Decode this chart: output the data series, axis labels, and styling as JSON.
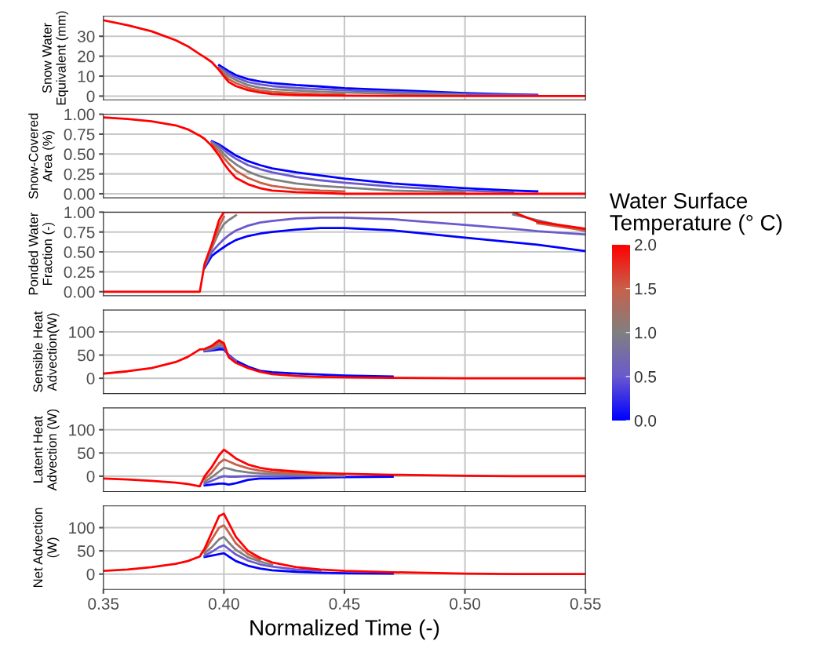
{
  "chart_data": [
    {
      "type": "line",
      "ylabel": "Snow Water\nEquivalent (mm)",
      "clabel": "Water Surface\nTemperature (° C)",
      "clim": [
        0,
        2
      ],
      "cticks": [
        {
          "value": 0,
          "label": "0.0"
        },
        {
          "value": 0.5,
          "label": "0.5"
        },
        {
          "value": 1,
          "label": "1.0"
        },
        {
          "value": 1.5,
          "label": "1.5"
        },
        {
          "value": 2,
          "label": "2.0"
        }
      ],
      "x": [
        0.35,
        0.36,
        0.37,
        0.38,
        0.385,
        0.39,
        0.392,
        0.395,
        0.398,
        0.4,
        0.402,
        0.405,
        0.41,
        0.415,
        0.42,
        0.43,
        0.44,
        0.45,
        0.47,
        0.5,
        0.52,
        0.53,
        0.55
      ],
      "xlim": [
        0.35,
        0.55
      ],
      "ylim": [
        -1.9,
        40
      ],
      "yticks": [
        0,
        10,
        20,
        30
      ],
      "grid": true,
      "tick_labels": "y",
      "series": [
        {
          "color": "#0000ff",
          "values": [
            null,
            null,
            null,
            null,
            null,
            null,
            null,
            null,
            15.5,
            14,
            12.5,
            10.5,
            8.5,
            7.3,
            6.5,
            5.5,
            4.8,
            4,
            3,
            1.5,
            0.8,
            0.6,
            null
          ]
        },
        {
          "color": "#6a5acd",
          "values": [
            null,
            null,
            null,
            null,
            null,
            null,
            null,
            null,
            14.5,
            13,
            11.3,
            9.3,
            7,
            5.8,
            5,
            4.1,
            3.5,
            2.9,
            2.1,
            1,
            0.5,
            0.3,
            null
          ]
        },
        {
          "color": "#808080",
          "values": [
            null,
            null,
            null,
            null,
            null,
            null,
            null,
            null,
            14,
            12,
            10,
            8,
            5.5,
            4.2,
            3.5,
            2.8,
            2.2,
            1.8,
            1.2,
            0.6,
            null,
            null,
            null
          ]
        },
        {
          "color": "#c8604a",
          "values": [
            null,
            null,
            null,
            null,
            null,
            null,
            null,
            null,
            13.5,
            11,
            8.5,
            6.5,
            4.2,
            2.8,
            2.1,
            1.5,
            1,
            0.8,
            null,
            null,
            null,
            null,
            null
          ]
        },
        {
          "color": "#ff0000",
          "values": [
            38,
            35.5,
            32.5,
            28,
            25,
            21,
            19.5,
            17,
            13,
            10,
            7,
            5,
            3,
            1.8,
            1,
            0.5,
            0.3,
            0.2,
            0.1,
            0,
            0,
            0,
            0
          ]
        }
      ]
    },
    {
      "type": "line",
      "ylabel": "Snow-Covered\nArea (%)",
      "x": [
        0.35,
        0.36,
        0.37,
        0.38,
        0.385,
        0.39,
        0.392,
        0.395,
        0.398,
        0.4,
        0.402,
        0.405,
        0.41,
        0.415,
        0.42,
        0.43,
        0.44,
        0.45,
        0.47,
        0.5,
        0.52,
        0.53,
        0.55
      ],
      "xlim": [
        0.35,
        0.55
      ],
      "ylim": [
        -0.05,
        1.0
      ],
      "yticks": [
        {
          "value": 0,
          "label": "0.00"
        },
        {
          "value": 0.25,
          "label": "0.25"
        },
        {
          "value": 0.5,
          "label": "0.50"
        },
        {
          "value": 0.75,
          "label": "0.75"
        },
        {
          "value": 1,
          "label": "1.00"
        }
      ],
      "grid": true,
      "tick_labels": "y",
      "series": [
        {
          "color": "#0000ff",
          "values": [
            null,
            null,
            null,
            null,
            null,
            null,
            null,
            0.66,
            0.62,
            0.58,
            0.54,
            0.48,
            0.41,
            0.36,
            0.32,
            0.27,
            0.23,
            0.19,
            0.13,
            0.07,
            0.04,
            0.03,
            null
          ]
        },
        {
          "color": "#6a5acd",
          "values": [
            null,
            null,
            null,
            null,
            null,
            null,
            null,
            0.65,
            0.6,
            0.55,
            0.5,
            0.44,
            0.36,
            0.31,
            0.27,
            0.21,
            0.17,
            0.14,
            0.09,
            0.04,
            0.02,
            null,
            null
          ]
        },
        {
          "color": "#808080",
          "values": [
            null,
            null,
            null,
            null,
            null,
            null,
            null,
            0.64,
            0.57,
            0.5,
            0.44,
            0.37,
            0.28,
            0.22,
            0.18,
            0.13,
            0.1,
            0.08,
            0.04,
            0.02,
            null,
            null,
            null
          ]
        },
        {
          "color": "#c8604a",
          "values": [
            null,
            null,
            null,
            null,
            null,
            null,
            null,
            0.62,
            0.53,
            0.45,
            0.38,
            0.29,
            0.2,
            0.14,
            0.1,
            0.06,
            0.04,
            0.03,
            null,
            null,
            null,
            null,
            null
          ]
        },
        {
          "color": "#ff0000",
          "values": [
            0.96,
            0.94,
            0.91,
            0.86,
            0.81,
            0.73,
            0.69,
            0.6,
            0.48,
            0.38,
            0.3,
            0.2,
            0.12,
            0.07,
            0.04,
            0.02,
            0.01,
            0,
            0,
            0,
            0,
            0,
            0
          ]
        }
      ]
    },
    {
      "type": "line",
      "ylabel": "Ponded Water\nFraction (-)",
      "x": [
        0.35,
        0.36,
        0.37,
        0.38,
        0.385,
        0.39,
        0.392,
        0.395,
        0.398,
        0.4,
        0.402,
        0.405,
        0.41,
        0.415,
        0.42,
        0.43,
        0.44,
        0.45,
        0.47,
        0.5,
        0.52,
        0.53,
        0.55
      ],
      "xlim": [
        0.35,
        0.55
      ],
      "ylim": [
        -0.05,
        1.0
      ],
      "yticks": [
        {
          "value": 0,
          "label": "0.00"
        },
        {
          "value": 0.25,
          "label": "0.25"
        },
        {
          "value": 0.5,
          "label": "0.50"
        },
        {
          "value": 0.75,
          "label": "0.75"
        },
        {
          "value": 1,
          "label": "1.00"
        }
      ],
      "grid": true,
      "tick_labels": "y",
      "series": [
        {
          "color": "#0000ff",
          "values": [
            null,
            null,
            null,
            null,
            null,
            null,
            0.3,
            0.45,
            0.52,
            0.56,
            0.6,
            0.65,
            0.7,
            0.73,
            0.75,
            0.78,
            0.8,
            0.8,
            0.77,
            0.68,
            0.62,
            0.59,
            0.51
          ]
        },
        {
          "color": "#6a5acd",
          "values": [
            null,
            null,
            null,
            null,
            null,
            null,
            0.32,
            0.5,
            0.6,
            0.66,
            0.71,
            0.77,
            0.83,
            0.87,
            0.89,
            0.92,
            0.93,
            0.93,
            0.91,
            0.84,
            0.79,
            0.76,
            0.72
          ]
        },
        {
          "color": "#808080",
          "values": [
            null,
            null,
            null,
            null,
            null,
            null,
            0.33,
            0.55,
            0.75,
            0.85,
            0.9,
            0.96,
            null,
            null,
            null,
            null,
            null,
            null,
            null,
            null,
            0.97,
            0.9,
            0.76
          ]
        },
        {
          "color": "#c8604a",
          "values": [
            null,
            null,
            null,
            null,
            null,
            null,
            null,
            0.56,
            0.82,
            0.94,
            null,
            null,
            null,
            null,
            null,
            null,
            null,
            null,
            null,
            null,
            null,
            0.86,
            0.77
          ]
        },
        {
          "color": "#ff0000",
          "values": [
            0,
            0,
            0,
            0,
            0,
            0,
            0.35,
            0.6,
            0.9,
            1,
            1,
            1,
            1,
            1,
            1,
            1,
            1,
            1,
            1,
            1,
            1,
            0.88,
            0.79
          ]
        }
      ]
    },
    {
      "type": "line",
      "ylabel": "Sensible Heat\nAdvection(W)",
      "x": [
        0.35,
        0.36,
        0.37,
        0.38,
        0.385,
        0.39,
        0.392,
        0.395,
        0.398,
        0.4,
        0.402,
        0.405,
        0.41,
        0.415,
        0.42,
        0.43,
        0.44,
        0.45,
        0.47,
        0.5,
        0.52,
        0.53,
        0.55
      ],
      "xlim": [
        0.35,
        0.55
      ],
      "ylim": [
        -33,
        147
      ],
      "yticks": [
        0,
        50,
        100
      ],
      "grid": true,
      "tick_labels": "y",
      "series": [
        {
          "color": "#0000ff",
          "values": [
            null,
            null,
            null,
            null,
            null,
            null,
            58,
            60,
            62,
            62,
            50,
            38,
            25,
            16,
            13,
            10,
            8,
            6,
            4,
            null,
            null,
            null,
            null
          ]
        },
        {
          "color": "#6a5acd",
          "values": [
            null,
            null,
            null,
            null,
            null,
            null,
            59,
            62,
            67,
            66,
            48,
            38,
            null,
            null,
            null,
            null,
            null,
            null,
            null,
            null,
            null,
            null,
            null
          ]
        },
        {
          "color": "#808080",
          "values": [
            null,
            null,
            null,
            null,
            null,
            null,
            60,
            65,
            72,
            70,
            null,
            null,
            null,
            null,
            null,
            null,
            null,
            null,
            null,
            null,
            null,
            null,
            null
          ]
        },
        {
          "color": "#c8604a",
          "values": [
            null,
            null,
            null,
            null,
            null,
            null,
            null,
            67,
            77,
            72,
            null,
            null,
            null,
            null,
            null,
            null,
            null,
            null,
            null,
            null,
            null,
            null,
            null
          ]
        },
        {
          "color": "#ff0000",
          "values": [
            10,
            15,
            22,
            35,
            46,
            62,
            63,
            70,
            82,
            75,
            45,
            33,
            22,
            14,
            9,
            5,
            3,
            2,
            1,
            0,
            0,
            0,
            0
          ]
        }
      ]
    },
    {
      "type": "line",
      "ylabel": "Latent Heat\nAdvection (W)",
      "x": [
        0.35,
        0.36,
        0.37,
        0.38,
        0.385,
        0.39,
        0.392,
        0.395,
        0.398,
        0.4,
        0.402,
        0.405,
        0.41,
        0.415,
        0.42,
        0.43,
        0.44,
        0.45,
        0.47,
        0.5,
        0.52,
        0.53,
        0.55
      ],
      "xlim": [
        0.35,
        0.55
      ],
      "ylim": [
        -33,
        147
      ],
      "yticks": [
        0,
        50,
        100
      ],
      "grid": true,
      "tick_labels": "y",
      "series": [
        {
          "color": "#0000ff",
          "values": [
            null,
            null,
            null,
            null,
            null,
            null,
            -20,
            -18,
            -16,
            -16,
            -18,
            -15,
            -8,
            -5,
            -5,
            -4,
            -3,
            -2,
            -1,
            null,
            null,
            null,
            null
          ]
        },
        {
          "color": "#6a5acd",
          "values": [
            null,
            null,
            null,
            null,
            null,
            null,
            -16,
            -10,
            -3,
            0,
            -1,
            -1,
            0,
            0,
            0,
            0,
            0,
            0,
            null,
            null,
            null,
            null,
            null
          ]
        },
        {
          "color": "#808080",
          "values": [
            null,
            null,
            null,
            null,
            null,
            null,
            -12,
            -2,
            10,
            18,
            16,
            12,
            8,
            6,
            5,
            3,
            2,
            2,
            null,
            null,
            null,
            null,
            null
          ]
        },
        {
          "color": "#c8604a",
          "values": [
            null,
            null,
            null,
            null,
            null,
            null,
            -6,
            8,
            28,
            36,
            32,
            25,
            17,
            12,
            9,
            6,
            4,
            null,
            null,
            null,
            null,
            null,
            null
          ]
        },
        {
          "color": "#ff0000",
          "values": [
            -5,
            -7,
            -10,
            -14,
            -17,
            -22,
            0,
            20,
            45,
            57,
            50,
            38,
            25,
            18,
            14,
            10,
            7,
            5,
            3,
            1,
            0,
            0,
            0
          ]
        }
      ]
    },
    {
      "type": "line",
      "ylabel": "Net Advection\n(W)",
      "xlabel": "Normalized Time (-)",
      "x": [
        0.35,
        0.36,
        0.37,
        0.38,
        0.385,
        0.39,
        0.392,
        0.395,
        0.398,
        0.4,
        0.402,
        0.405,
        0.41,
        0.415,
        0.42,
        0.43,
        0.44,
        0.45,
        0.47,
        0.5,
        0.52,
        0.53,
        0.55
      ],
      "xlim": [
        0.35,
        0.55
      ],
      "xticks": [
        {
          "value": 0.35,
          "label": "0.35"
        },
        {
          "value": 0.4,
          "label": "0.40"
        },
        {
          "value": 0.45,
          "label": "0.45"
        },
        {
          "value": 0.5,
          "label": "0.50"
        },
        {
          "value": 0.55,
          "label": "0.55"
        }
      ],
      "ylim": [
        -33,
        147
      ],
      "yticks": [
        0,
        50,
        100
      ],
      "grid": true,
      "series": [
        {
          "color": "#0000ff",
          "values": [
            null,
            null,
            null,
            null,
            null,
            null,
            37,
            40,
            43,
            45,
            38,
            28,
            18,
            12,
            8,
            5,
            3,
            2,
            1,
            null,
            null,
            null,
            null
          ]
        },
        {
          "color": "#6a5acd",
          "values": [
            null,
            null,
            null,
            null,
            null,
            null,
            40,
            48,
            58,
            62,
            54,
            42,
            29,
            21,
            16,
            10,
            7,
            null,
            null,
            null,
            null,
            null,
            null
          ]
        },
        {
          "color": "#808080",
          "values": [
            null,
            null,
            null,
            null,
            null,
            null,
            45,
            58,
            75,
            80,
            68,
            52,
            36,
            27,
            20,
            null,
            null,
            null,
            null,
            null,
            null,
            null,
            null
          ]
        },
        {
          "color": "#c8604a",
          "values": [
            null,
            null,
            null,
            null,
            null,
            null,
            50,
            75,
            100,
            105,
            90,
            66,
            43,
            31,
            null,
            null,
            null,
            null,
            null,
            null,
            null,
            null,
            null
          ]
        },
        {
          "color": "#ff0000",
          "values": [
            7,
            10,
            15,
            22,
            28,
            38,
            55,
            90,
            125,
            130,
            110,
            80,
            50,
            35,
            25,
            15,
            10,
            7,
            4,
            1,
            0,
            0,
            0
          ]
        }
      ]
    }
  ]
}
